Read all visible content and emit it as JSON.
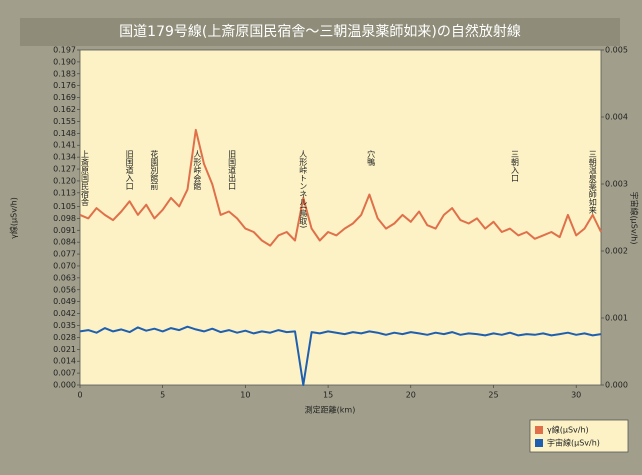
{
  "chart_data": {
    "type": "line",
    "title": "国道179号線(上斎原国民宿舎〜三朝温泉薬師如来)の自然放射線",
    "xlabel": "測定距離(km)",
    "ylabel": "γ線(μSv/h)",
    "y2label": "宇宙線(μSv/h)",
    "xlim": [
      0,
      31.5
    ],
    "xticks": [
      0,
      5,
      10,
      15,
      20,
      25,
      30
    ],
    "ylim": [
      0,
      0.197
    ],
    "yticks": [
      {
        "value": 0,
        "label": "0.000"
      },
      0.007,
      0.014,
      0.021,
      0.028,
      0.035,
      0.042,
      0.049,
      0.056,
      0.063,
      {
        "value": 0.07,
        "label": "0.070"
      },
      0.077,
      0.084,
      0.091,
      0.098,
      0.105,
      0.113,
      {
        "value": 0.12,
        "label": "0.120"
      },
      0.127,
      0.134,
      0.141,
      0.148,
      0.155,
      0.162,
      0.169,
      0.176,
      0.183,
      {
        "value": 0.19,
        "label": "0.190"
      },
      0.197
    ],
    "y2lim": [
      0,
      0.005
    ],
    "y2ticks": [
      {
        "value": 0,
        "label": "0.000"
      },
      0.001,
      0.002,
      0.003,
      0.004,
      0.005
    ],
    "x": [
      0,
      0.5,
      1,
      1.5,
      2,
      2.5,
      3,
      3.5,
      4,
      4.5,
      5,
      5.5,
      6,
      6.5,
      7,
      7.5,
      8,
      8.5,
      9,
      9.5,
      10,
      10.5,
      11,
      11.5,
      12,
      12.5,
      13,
      13.5,
      14,
      14.5,
      15,
      15.5,
      16,
      16.5,
      17,
      17.5,
      18,
      18.5,
      19,
      19.5,
      20,
      20.5,
      21,
      21.5,
      22,
      22.5,
      23,
      23.5,
      24,
      24.5,
      25,
      25.5,
      26,
      26.5,
      27,
      27.5,
      28,
      28.5,
      29,
      29.5,
      30,
      30.5,
      31,
      31.5
    ],
    "series": [
      {
        "name": "γ線(μSv/h)",
        "color": "#e0704a",
        "axis": "y",
        "values": [
          0.1,
          0.098,
          0.104,
          0.1,
          0.097,
          0.102,
          0.108,
          0.1,
          0.106,
          0.098,
          0.103,
          0.11,
          0.105,
          0.115,
          0.15,
          0.13,
          0.118,
          0.1,
          0.102,
          0.098,
          0.092,
          0.09,
          0.085,
          0.082,
          0.088,
          0.09,
          0.085,
          0.11,
          0.092,
          0.085,
          0.09,
          0.088,
          0.092,
          0.095,
          0.1,
          0.112,
          0.098,
          0.092,
          0.095,
          0.1,
          0.096,
          0.102,
          0.094,
          0.092,
          0.1,
          0.104,
          0.097,
          0.095,
          0.098,
          0.092,
          0.096,
          0.09,
          0.092,
          0.088,
          0.09,
          0.086,
          0.088,
          0.09,
          0.087,
          0.1,
          0.088,
          0.092,
          0.1,
          0.09
        ]
      },
      {
        "name": "宇宙線(μSv/h)",
        "color": "#1f5fb0",
        "axis": "y2",
        "values": [
          0.0008,
          0.00082,
          0.00078,
          0.00085,
          0.0008,
          0.00083,
          0.00079,
          0.00086,
          0.00081,
          0.00084,
          0.0008,
          0.00085,
          0.00082,
          0.00087,
          0.00083,
          0.0008,
          0.00084,
          0.00079,
          0.00082,
          0.00078,
          0.00081,
          0.00077,
          0.0008,
          0.00078,
          0.00082,
          0.00079,
          0.0008,
          0.0,
          0.00079,
          0.00077,
          0.0008,
          0.00078,
          0.00076,
          0.00079,
          0.00077,
          0.0008,
          0.00078,
          0.00075,
          0.00078,
          0.00076,
          0.00079,
          0.00077,
          0.00075,
          0.00078,
          0.00076,
          0.00079,
          0.00075,
          0.00077,
          0.00076,
          0.00074,
          0.00077,
          0.00075,
          0.00078,
          0.00074,
          0.00076,
          0.00075,
          0.00077,
          0.00074,
          0.00076,
          0.00078,
          0.00075,
          0.00077,
          0.00074,
          0.00076
        ]
      }
    ],
    "annotations": [
      {
        "text": "上斎原国民宿舎",
        "x": 0.3
      },
      {
        "text": "旧国道入口",
        "x": 3.0
      },
      {
        "text": "花園別館前",
        "x": 4.5
      },
      {
        "text": "人形峠会館",
        "x": 7.1
      },
      {
        "text": "旧国道出口",
        "x": 9.2
      },
      {
        "text": "人形峠トンネル(鳥取)",
        "x": 13.5
      },
      {
        "text": "穴鴨",
        "x": 17.6
      },
      {
        "text": "三朝入口",
        "x": 26.3
      },
      {
        "text": "三朝温泉薬師如来",
        "x": 31.0
      }
    ]
  }
}
